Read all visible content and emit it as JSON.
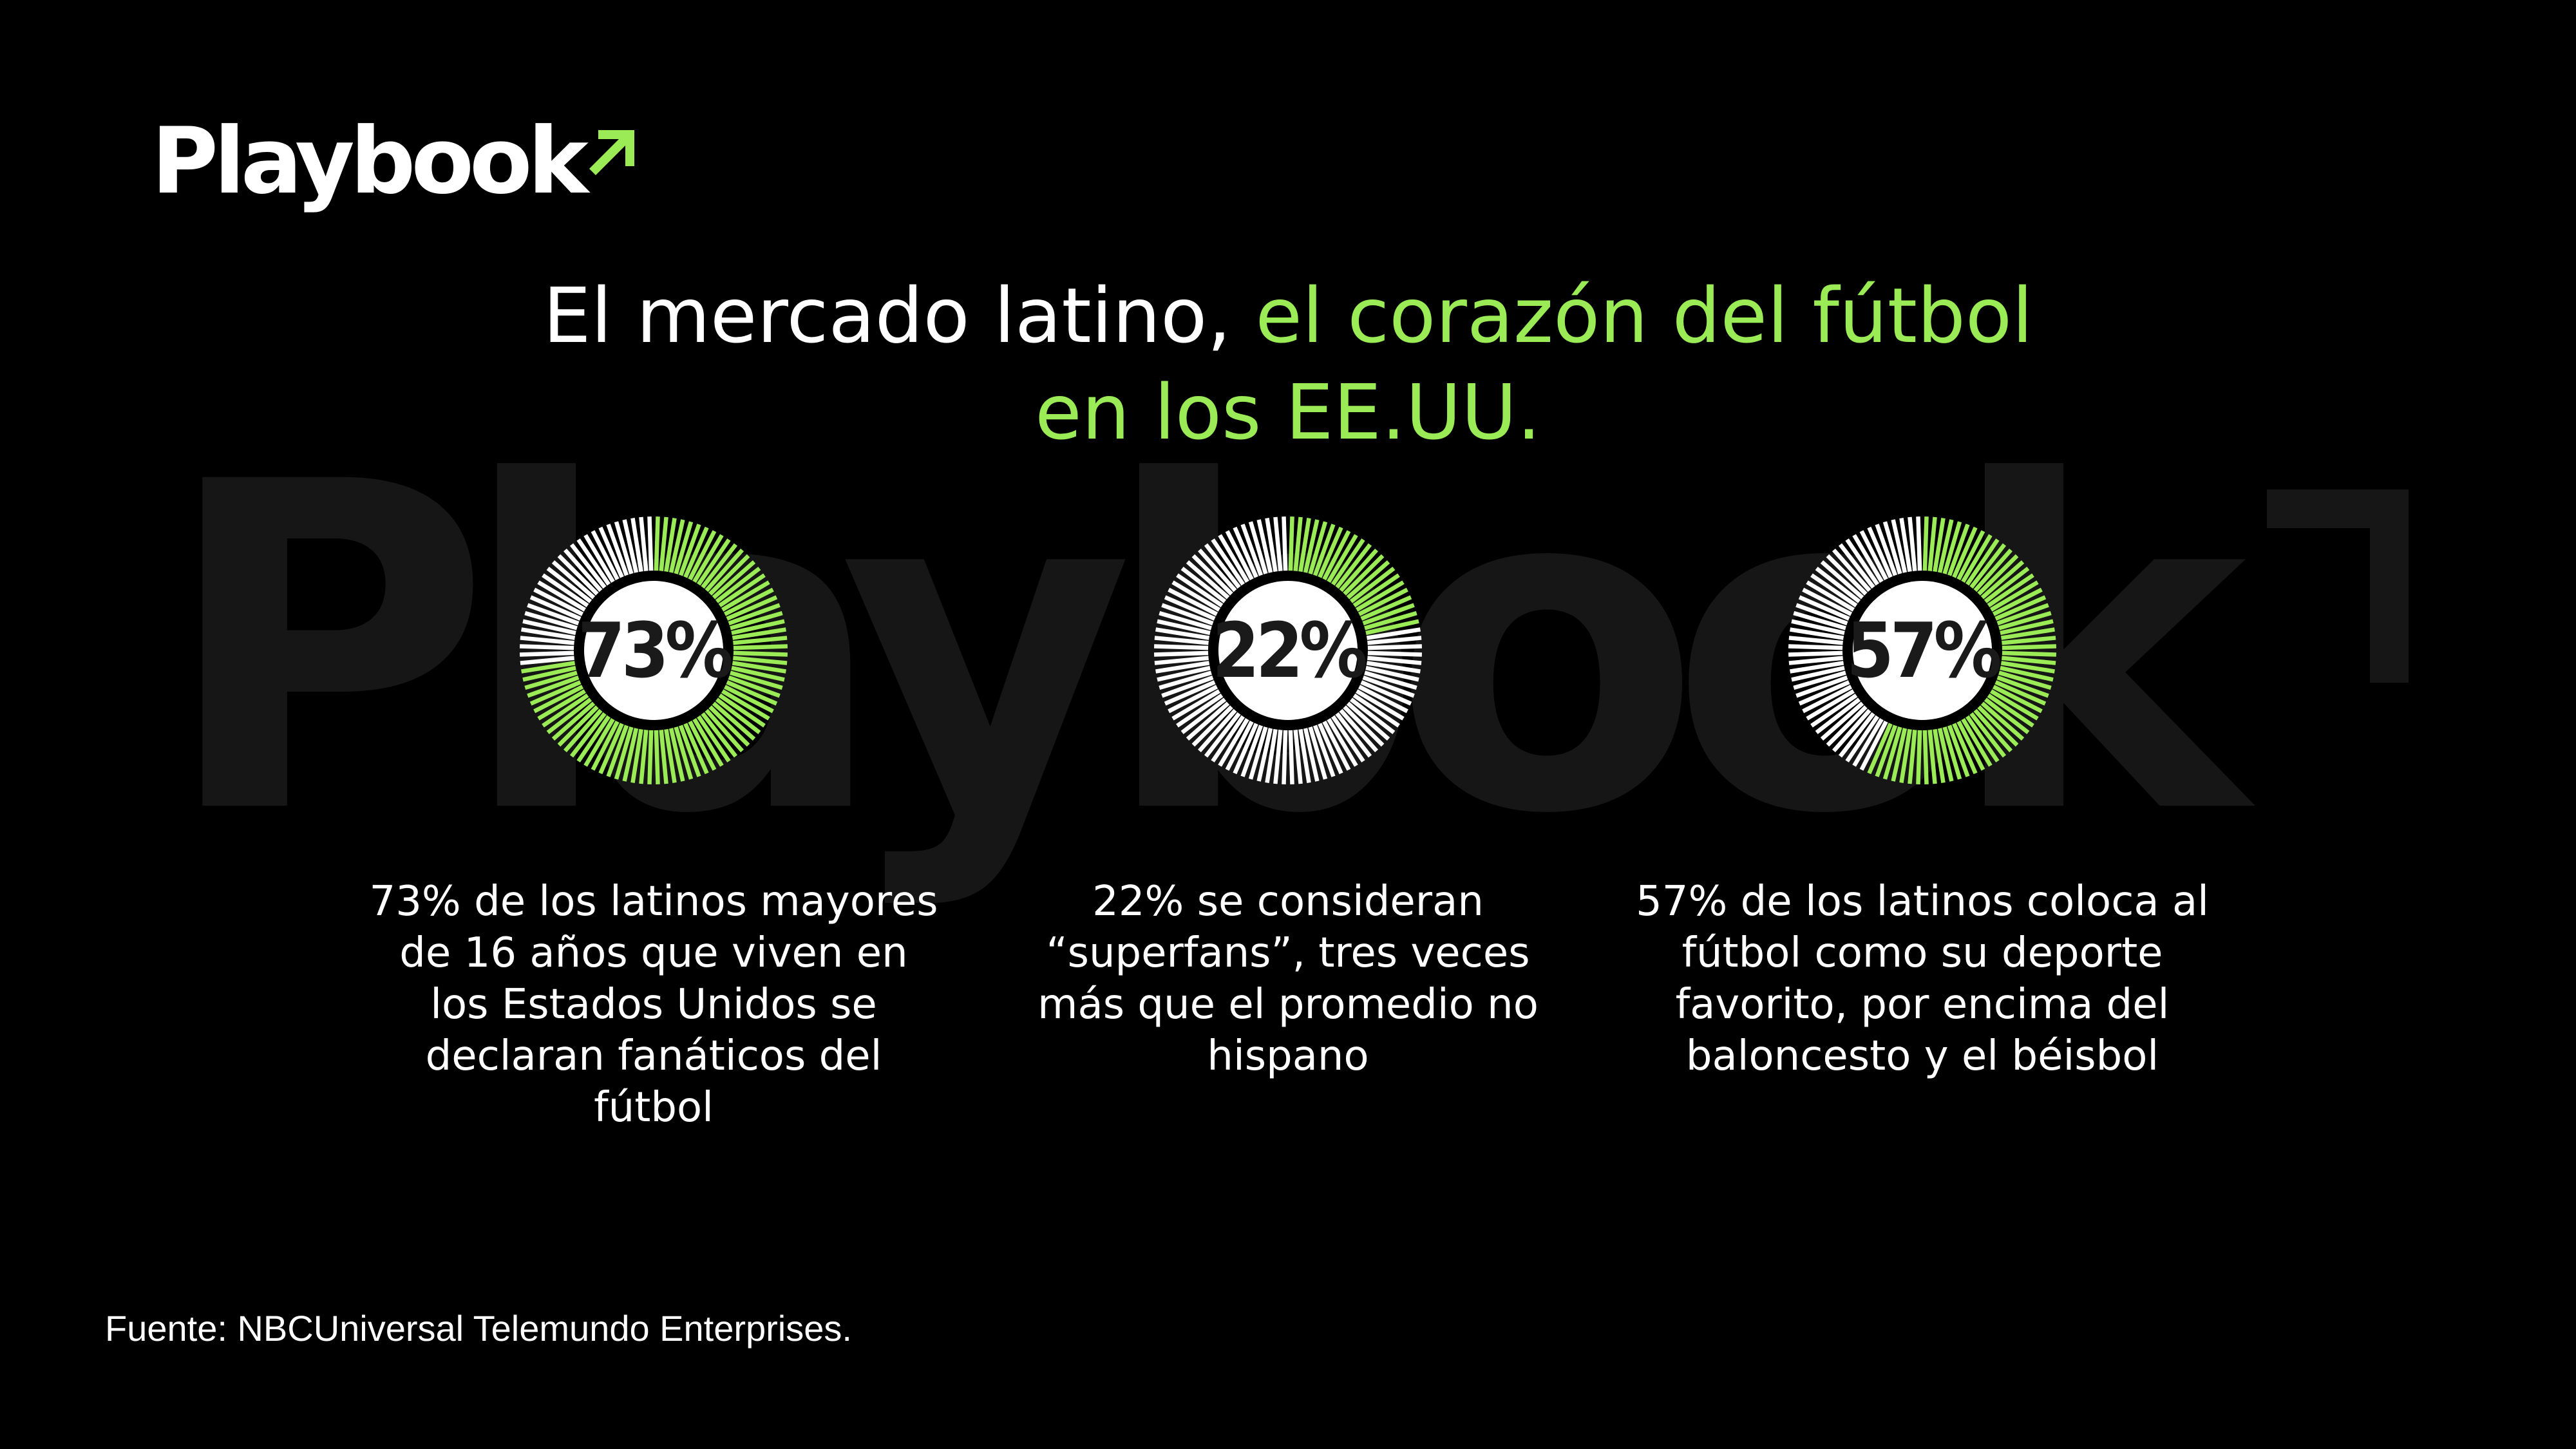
{
  "brand": {
    "name": "Playbook",
    "watermark": "Playbook"
  },
  "title": {
    "prefix": "El mercado latino, ",
    "highlight_line1": "el corazón del fútbol",
    "highlight_line2": "en los EE.UU."
  },
  "colors": {
    "background": "#000000",
    "accent": "#9aeb55",
    "text": "#ffffff",
    "segment_empty": "#ffffff",
    "segment_filled": "#9aeb55",
    "donut_center": "#ffffff",
    "donut_ring": "#000000"
  },
  "chart_data": [
    {
      "type": "pie",
      "value": 73,
      "label": "73%",
      "description": "73% de los latinos mayores de 16 años que viven en los Estados Unidos se declaran fanáticos del fútbol"
    },
    {
      "type": "pie",
      "value": 22,
      "label": "22%",
      "description": "22% se consideran “superfans”, tres veces más que el promedio no hispano"
    },
    {
      "type": "pie",
      "value": 57,
      "label": "57%",
      "description": "57% de los latinos coloca al fútbol como su deporte favorito, por encima del baloncesto y el béisbol"
    }
  ],
  "source": "Fuente: NBCUniversal Telemundo Enterprises."
}
